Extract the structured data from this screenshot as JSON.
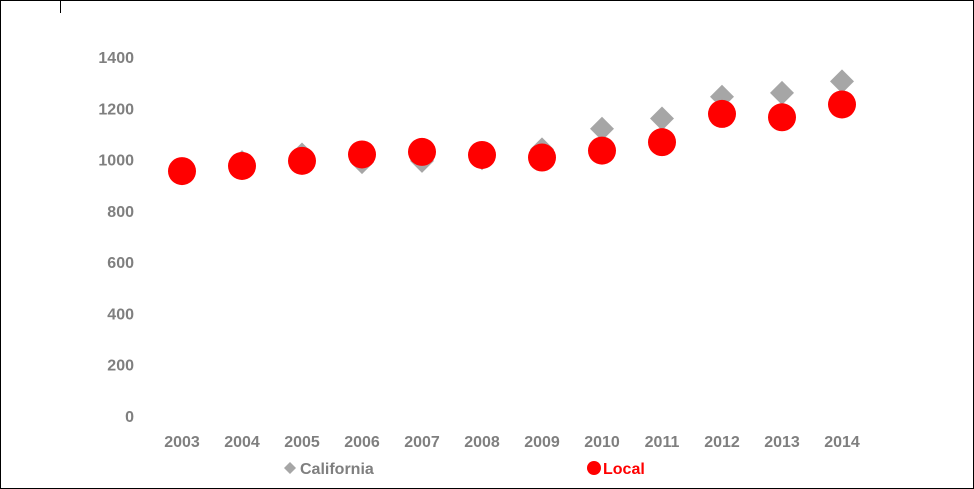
{
  "chart_data": {
    "type": "scatter",
    "title": "",
    "xlabel": "",
    "ylabel": "",
    "categories": [
      "2003",
      "2004",
      "2005",
      "2006",
      "2007",
      "2008",
      "2009",
      "2010",
      "2011",
      "2012",
      "2013",
      "2014"
    ],
    "ylim": [
      0,
      1400
    ],
    "y_ticks": [
      "0",
      "200",
      "400",
      "600",
      "800",
      "1000",
      "1200",
      "1400"
    ],
    "grid": false,
    "legend_position": "bottom",
    "series": [
      {
        "name": "California",
        "marker": "diamond",
        "color": "#a6a6a6",
        "values": [
          950,
          990,
          1020,
          990,
          995,
          1005,
          1040,
          1120,
          1160,
          1245,
          1260,
          1305
        ]
      },
      {
        "name": "Local",
        "marker": "circle",
        "color": "#ff0000",
        "values": [
          955,
          975,
          995,
          1020,
          1030,
          1018,
          1008,
          1035,
          1068,
          1178,
          1165,
          1215
        ]
      }
    ]
  }
}
